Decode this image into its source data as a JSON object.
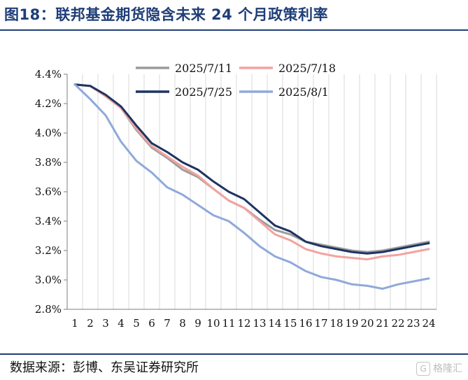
{
  "figure": {
    "title": "图18：联邦基金期货隐含未来 24 个月政策利率",
    "source": "数据来源：彭博、东吴证券研究所",
    "watermark": "格隆汇"
  },
  "chart_data": {
    "type": "line",
    "x": [
      1,
      2,
      3,
      4,
      5,
      6,
      7,
      8,
      9,
      10,
      11,
      12,
      13,
      14,
      15,
      16,
      17,
      18,
      19,
      20,
      21,
      22,
      23,
      24
    ],
    "xlim": [
      1,
      24
    ],
    "ylim": [
      2.8,
      4.4
    ],
    "yticks": [
      2.8,
      3.0,
      3.2,
      3.4,
      3.6,
      3.8,
      4.0,
      4.2,
      4.4
    ],
    "yunit": "%",
    "grid": "vertical",
    "legend": "top",
    "series": [
      {
        "name": "2025/7/11",
        "color": "#9c9c9c",
        "values": [
          4.33,
          4.32,
          4.25,
          4.17,
          4.02,
          3.9,
          3.83,
          3.75,
          3.7,
          3.62,
          3.54,
          3.49,
          3.41,
          3.34,
          3.31,
          3.26,
          3.24,
          3.22,
          3.2,
          3.19,
          3.2,
          3.22,
          3.24,
          3.26
        ]
      },
      {
        "name": "2025/7/18",
        "color": "#f2a3a0",
        "values": [
          4.33,
          4.32,
          4.25,
          4.17,
          4.03,
          3.91,
          3.84,
          3.77,
          3.71,
          3.62,
          3.54,
          3.49,
          3.4,
          3.31,
          3.27,
          3.21,
          3.18,
          3.16,
          3.15,
          3.14,
          3.16,
          3.17,
          3.19,
          3.21
        ]
      },
      {
        "name": "2025/7/25",
        "color": "#1e3461",
        "values": [
          4.33,
          4.32,
          4.26,
          4.18,
          4.05,
          3.93,
          3.87,
          3.8,
          3.75,
          3.67,
          3.6,
          3.55,
          3.46,
          3.37,
          3.33,
          3.26,
          3.23,
          3.21,
          3.19,
          3.18,
          3.19,
          3.21,
          3.23,
          3.25
        ]
      },
      {
        "name": "2025/8/1",
        "color": "#8fa9da",
        "values": [
          4.33,
          4.23,
          4.12,
          3.94,
          3.81,
          3.73,
          3.63,
          3.58,
          3.51,
          3.44,
          3.4,
          3.32,
          3.23,
          3.16,
          3.12,
          3.06,
          3.02,
          3.0,
          2.97,
          2.96,
          2.94,
          2.97,
          2.99,
          3.01
        ]
      }
    ]
  }
}
